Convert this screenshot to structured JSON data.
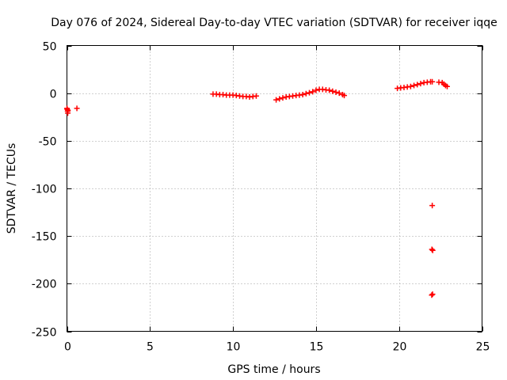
{
  "chart_data": {
    "type": "scatter",
    "title": "Day 076 of 2024, Sidereal Day-to-day VTEC variation (SDTVAR) for receiver iqqe",
    "xlabel": "GPS time / hours",
    "ylabel": "SDTVAR / TECUs",
    "xlim": [
      0,
      25
    ],
    "ylim": [
      -250,
      50
    ],
    "xticks": [
      0,
      5,
      10,
      15,
      20,
      25
    ],
    "yticks": [
      -250,
      -200,
      -150,
      -100,
      -50,
      0,
      50
    ],
    "grid": true,
    "marker": "+",
    "color": "#ff0000",
    "series": [
      {
        "name": "SDTVAR",
        "points": [
          [
            0.0,
            -16
          ],
          [
            0.02,
            -17
          ],
          [
            0.04,
            -19
          ],
          [
            0.06,
            -18
          ],
          [
            0.05,
            -21
          ],
          [
            0.6,
            -16
          ],
          [
            8.8,
            -1
          ],
          [
            9.0,
            -1
          ],
          [
            9.2,
            -1.5
          ],
          [
            9.4,
            -1.5
          ],
          [
            9.6,
            -2
          ],
          [
            9.8,
            -2
          ],
          [
            10.0,
            -2
          ],
          [
            10.2,
            -2.5
          ],
          [
            10.4,
            -3
          ],
          [
            10.6,
            -3.5
          ],
          [
            10.8,
            -3.5
          ],
          [
            11.0,
            -4
          ],
          [
            11.2,
            -3.5
          ],
          [
            11.4,
            -3
          ],
          [
            12.6,
            -7
          ],
          [
            12.8,
            -6
          ],
          [
            13.0,
            -5
          ],
          [
            13.2,
            -4
          ],
          [
            13.4,
            -3.5
          ],
          [
            13.6,
            -3
          ],
          [
            13.8,
            -2.5
          ],
          [
            14.0,
            -2
          ],
          [
            14.2,
            -1.5
          ],
          [
            14.4,
            -0.5
          ],
          [
            14.6,
            0.5
          ],
          [
            14.8,
            1.5
          ],
          [
            15.0,
            3
          ],
          [
            15.2,
            4
          ],
          [
            15.4,
            4
          ],
          [
            15.6,
            3.5
          ],
          [
            15.8,
            3
          ],
          [
            16.0,
            2
          ],
          [
            16.2,
            1
          ],
          [
            16.4,
            0
          ],
          [
            16.6,
            -1.5
          ],
          [
            16.7,
            -2.5
          ],
          [
            19.9,
            5
          ],
          [
            20.1,
            5.5
          ],
          [
            20.3,
            6
          ],
          [
            20.5,
            6.5
          ],
          [
            20.7,
            7
          ],
          [
            20.9,
            8
          ],
          [
            21.1,
            9
          ],
          [
            21.3,
            10
          ],
          [
            21.5,
            11
          ],
          [
            21.7,
            11.5
          ],
          [
            21.9,
            12
          ],
          [
            22.0,
            12
          ],
          [
            22.4,
            11.5
          ],
          [
            22.6,
            11
          ],
          [
            22.7,
            9.5
          ],
          [
            22.8,
            8
          ],
          [
            22.9,
            7
          ],
          [
            22.0,
            -118
          ],
          [
            21.98,
            -164
          ],
          [
            22.03,
            -165
          ],
          [
            21.97,
            -212
          ],
          [
            22.02,
            -211
          ]
        ]
      }
    ]
  }
}
